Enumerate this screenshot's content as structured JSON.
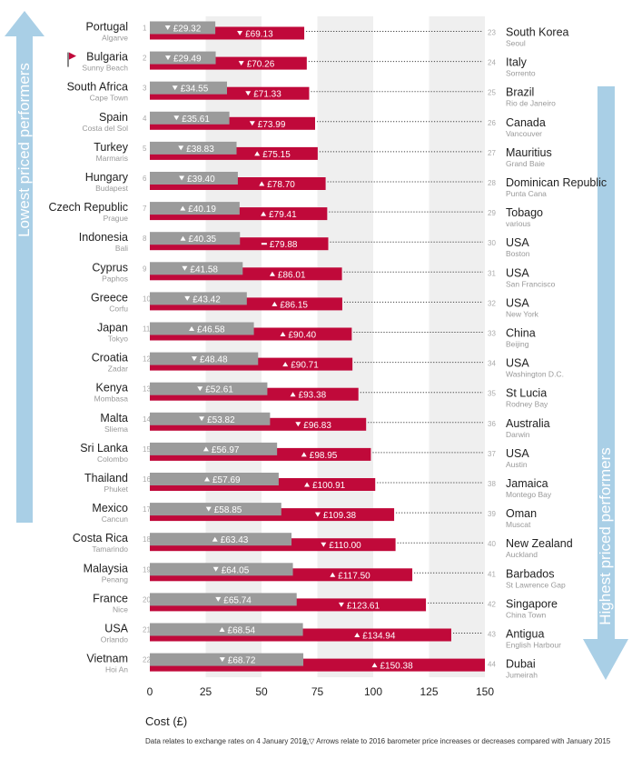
{
  "chart_data": {
    "type": "bar",
    "xlabel": "Cost (£)",
    "xlim": [
      0,
      150
    ],
    "x_ticks": [
      "0",
      "25",
      "50",
      "75",
      "100",
      "125",
      "150"
    ],
    "left_side_label": "Lowest priced performers",
    "right_side_label": "Highest priced performers",
    "footnote_left": "Data relates to exchange rates on 4 January 2016",
    "footnote_right": "△▽  Arrows relate to 2016 barometer price increases or decreases compared with January 2015",
    "colors": {
      "grey_bar": "#9b9b9b",
      "red_bar": "#c0093a",
      "arrow_blue": "#a9cfe6"
    },
    "rows": [
      {
        "rank_left": "1",
        "country_left": "Portugal",
        "city_left": "Algarve",
        "value_left": 29.32,
        "label_left": "£29.32",
        "dir_left": "down",
        "rank_right": "23",
        "country_right": "South Korea",
        "city_right": "Seoul",
        "value_right": 69.13,
        "label_right": "£69.13",
        "dir_right": "down"
      },
      {
        "rank_left": "2",
        "country_left": "Bulgaria",
        "city_left": "Sunny Beach",
        "value_left": 29.49,
        "label_left": "£29.49",
        "dir_left": "down",
        "rank_right": "24",
        "country_right": "Italy",
        "city_right": "Sorrento",
        "value_right": 70.26,
        "label_right": "£70.26",
        "dir_right": "down"
      },
      {
        "rank_left": "3",
        "country_left": "South Africa",
        "city_left": "Cape Town",
        "value_left": 34.55,
        "label_left": "£34.55",
        "dir_left": "down",
        "rank_right": "25",
        "country_right": "Brazil",
        "city_right": "Rio de Janeiro",
        "value_right": 71.33,
        "label_right": "£71.33",
        "dir_right": "down"
      },
      {
        "rank_left": "4",
        "country_left": "Spain",
        "city_left": "Costa del Sol",
        "value_left": 35.61,
        "label_left": "£35.61",
        "dir_left": "down",
        "rank_right": "26",
        "country_right": "Canada",
        "city_right": "Vancouver",
        "value_right": 73.99,
        "label_right": "£73.99",
        "dir_right": "down"
      },
      {
        "rank_left": "5",
        "country_left": "Turkey",
        "city_left": "Marmaris",
        "value_left": 38.83,
        "label_left": "£38.83",
        "dir_left": "down",
        "rank_right": "27",
        "country_right": "Mauritius",
        "city_right": "Grand Baie",
        "value_right": 75.15,
        "label_right": "£75.15",
        "dir_right": "up"
      },
      {
        "rank_left": "6",
        "country_left": "Hungary",
        "city_left": "Budapest",
        "value_left": 39.4,
        "label_left": "£39.40",
        "dir_left": "down",
        "rank_right": "28",
        "country_right": "Dominican Republic",
        "city_right": "Punta Cana",
        "value_right": 78.7,
        "label_right": "£78.70",
        "dir_right": "up"
      },
      {
        "rank_left": "7",
        "country_left": "Czech Republic",
        "city_left": "Prague",
        "value_left": 40.19,
        "label_left": "£40.19",
        "dir_left": "up",
        "rank_right": "29",
        "country_right": "Tobago",
        "city_right": "various",
        "value_right": 79.41,
        "label_right": "£79.41",
        "dir_right": "up"
      },
      {
        "rank_left": "8",
        "country_left": "Indonesia",
        "city_left": "Bali",
        "value_left": 40.35,
        "label_left": "£40.35",
        "dir_left": "up",
        "rank_right": "30",
        "country_right": "USA",
        "city_right": "Boston",
        "value_right": 79.88,
        "label_right": "£79.88",
        "dir_right": "same"
      },
      {
        "rank_left": "9",
        "country_left": "Cyprus",
        "city_left": "Paphos",
        "value_left": 41.58,
        "label_left": "£41.58",
        "dir_left": "down",
        "rank_right": "31",
        "country_right": "USA",
        "city_right": "San Francisco",
        "value_right": 86.01,
        "label_right": "£86.01",
        "dir_right": "up"
      },
      {
        "rank_left": "10",
        "country_left": "Greece",
        "city_left": "Corfu",
        "value_left": 43.42,
        "label_left": "£43.42",
        "dir_left": "down",
        "rank_right": "32",
        "country_right": "USA",
        "city_right": "New York",
        "value_right": 86.15,
        "label_right": "£86.15",
        "dir_right": "up"
      },
      {
        "rank_left": "11",
        "country_left": "Japan",
        "city_left": "Tokyo",
        "value_left": 46.58,
        "label_left": "£46.58",
        "dir_left": "up",
        "rank_right": "33",
        "country_right": "China",
        "city_right": "Beijing",
        "value_right": 90.4,
        "label_right": "£90.40",
        "dir_right": "up"
      },
      {
        "rank_left": "12",
        "country_left": "Croatia",
        "city_left": "Zadar",
        "value_left": 48.48,
        "label_left": "£48.48",
        "dir_left": "down",
        "rank_right": "34",
        "country_right": "USA",
        "city_right": "Washington D.C.",
        "value_right": 90.71,
        "label_right": "£90.71",
        "dir_right": "up"
      },
      {
        "rank_left": "13",
        "country_left": "Kenya",
        "city_left": "Mombasa",
        "value_left": 52.61,
        "label_left": "£52.61",
        "dir_left": "down",
        "rank_right": "35",
        "country_right": "St Lucia",
        "city_right": "Rodney Bay",
        "value_right": 93.38,
        "label_right": "£93.38",
        "dir_right": "up"
      },
      {
        "rank_left": "14",
        "country_left": "Malta",
        "city_left": "Sliema",
        "value_left": 53.82,
        "label_left": "£53.82",
        "dir_left": "down",
        "rank_right": "36",
        "country_right": "Australia",
        "city_right": "Darwin",
        "value_right": 96.83,
        "label_right": "£96.83",
        "dir_right": "down"
      },
      {
        "rank_left": "15",
        "country_left": "Sri Lanka",
        "city_left": "Colombo",
        "value_left": 56.97,
        "label_left": "£56.97",
        "dir_left": "up",
        "rank_right": "37",
        "country_right": "USA",
        "city_right": "Austin",
        "value_right": 98.95,
        "label_right": "£98.95",
        "dir_right": "up"
      },
      {
        "rank_left": "16",
        "country_left": "Thailand",
        "city_left": "Phuket",
        "value_left": 57.69,
        "label_left": "£57.69",
        "dir_left": "up",
        "rank_right": "38",
        "country_right": "Jamaica",
        "city_right": "Montego Bay",
        "value_right": 100.91,
        "label_right": "£100.91",
        "dir_right": "up"
      },
      {
        "rank_left": "17",
        "country_left": "Mexico",
        "city_left": "Cancun",
        "value_left": 58.85,
        "label_left": "£58.85",
        "dir_left": "down",
        "rank_right": "39",
        "country_right": "Oman",
        "city_right": "Muscat",
        "value_right": 109.38,
        "label_right": "£109.38",
        "dir_right": "down"
      },
      {
        "rank_left": "18",
        "country_left": "Costa Rica",
        "city_left": "Tamarindo",
        "value_left": 63.43,
        "label_left": "£63.43",
        "dir_left": "up",
        "rank_right": "40",
        "country_right": "New Zealand",
        "city_right": "Auckland",
        "value_right": 110.0,
        "label_right": "£110.00",
        "dir_right": "down"
      },
      {
        "rank_left": "19",
        "country_left": "Malaysia",
        "city_left": "Penang",
        "value_left": 64.05,
        "label_left": "£64.05",
        "dir_left": "down",
        "rank_right": "41",
        "country_right": "Barbados",
        "city_right": "St Lawrence Gap",
        "value_right": 117.5,
        "label_right": "£117.50",
        "dir_right": "up"
      },
      {
        "rank_left": "20",
        "country_left": "France",
        "city_left": "Nice",
        "value_left": 65.74,
        "label_left": "£65.74",
        "dir_left": "down",
        "rank_right": "42",
        "country_right": "Singapore",
        "city_right": "China Town",
        "value_right": 123.61,
        "label_right": "£123.61",
        "dir_right": "down"
      },
      {
        "rank_left": "21",
        "country_left": "USA",
        "city_left": "Orlando",
        "value_left": 68.54,
        "label_left": "£68.54",
        "dir_left": "up",
        "rank_right": "43",
        "country_right": "Antigua",
        "city_right": "English Harbour",
        "value_right": 134.94,
        "label_right": "£134.94",
        "dir_right": "up"
      },
      {
        "rank_left": "22",
        "country_left": "Vietnam",
        "city_left": "Hoi An",
        "value_left": 68.72,
        "label_left": "£68.72",
        "dir_left": "down",
        "rank_right": "44",
        "country_right": "Dubai",
        "city_right": "Jumeirah",
        "value_right": 150.38,
        "label_right": "£150.38",
        "dir_right": "up"
      }
    ]
  }
}
